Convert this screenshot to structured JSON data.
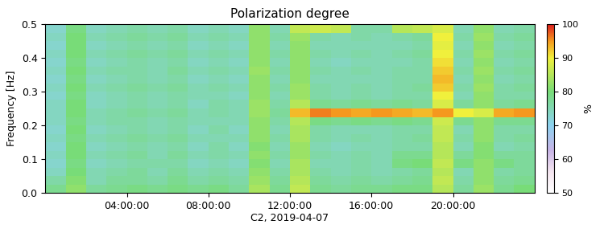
{
  "chart_data": {
    "type": "heatmap",
    "title": "Polarization degree",
    "x_label": "C2, 2019-04-07",
    "y_label": "Frequency [Hz]",
    "xlim": [
      0,
      24
    ],
    "xticks": [
      {
        "value": 4,
        "label": "04:00:00"
      },
      {
        "value": 8,
        "label": "08:00:00"
      },
      {
        "value": 12,
        "label": "12:00:00"
      },
      {
        "value": 16,
        "label": "16:00:00"
      },
      {
        "value": 20,
        "label": "20:00:00"
      }
    ],
    "ylim": [
      0,
      0.5
    ],
    "yticks": [
      {
        "value": 0,
        "label": "0.0"
      },
      {
        "value": 0.1,
        "label": "0.1"
      },
      {
        "value": 0.2,
        "label": "0.2"
      },
      {
        "value": 0.3,
        "label": "0.3"
      },
      {
        "value": 0.4,
        "label": "0.4"
      },
      {
        "value": 0.5,
        "label": "0.5"
      }
    ],
    "x_edges": [
      0,
      1,
      2,
      3,
      4,
      5,
      6,
      7,
      8,
      9,
      10,
      11,
      12,
      13,
      14,
      15,
      16,
      17,
      18,
      19,
      20,
      21,
      22,
      23,
      24
    ],
    "y_edges": [
      0,
      0.025,
      0.05,
      0.075,
      0.1,
      0.125,
      0.15,
      0.175,
      0.2,
      0.225,
      0.25,
      0.275,
      0.3,
      0.325,
      0.35,
      0.375,
      0.4,
      0.425,
      0.45,
      0.475,
      0.5
    ],
    "cells": [
      [
        78,
        82,
        77,
        78,
        79,
        78,
        79,
        78,
        79,
        77,
        84,
        78,
        86,
        78,
        77,
        78,
        78,
        79,
        79,
        85,
        77,
        83,
        78,
        80
      ],
      [
        76,
        81,
        75,
        77,
        77,
        76,
        78,
        76,
        77,
        76,
        83,
        77,
        85,
        77,
        76,
        77,
        76,
        77,
        78,
        86,
        76,
        82,
        77,
        78
      ],
      [
        74,
        80,
        75,
        76,
        77,
        75,
        77,
        75,
        76,
        75,
        82,
        76,
        84,
        76,
        75,
        76,
        75,
        76,
        77,
        85,
        75,
        82,
        76,
        77
      ],
      [
        73,
        79,
        74,
        75,
        76,
        76,
        76,
        74,
        75,
        74,
        81,
        75,
        84,
        75,
        75,
        76,
        75,
        79,
        80,
        86,
        79,
        82,
        79,
        77
      ],
      [
        74,
        80,
        75,
        76,
        77,
        75,
        77,
        75,
        76,
        75,
        82,
        76,
        83,
        76,
        75,
        76,
        75,
        78,
        78,
        85,
        77,
        81,
        77,
        77
      ],
      [
        73,
        80,
        74,
        75,
        76,
        75,
        76,
        74,
        76,
        74,
        81,
        75,
        83,
        75,
        74,
        75,
        75,
        76,
        76,
        85,
        75,
        81,
        75,
        76
      ],
      [
        74,
        79,
        75,
        76,
        77,
        76,
        77,
        75,
        75,
        75,
        82,
        76,
        84,
        76,
        75,
        76,
        75,
        76,
        77,
        86,
        76,
        82,
        76,
        77
      ],
      [
        73,
        80,
        74,
        75,
        76,
        75,
        76,
        74,
        76,
        74,
        82,
        75,
        84,
        76,
        75,
        75,
        75,
        76,
        76,
        86,
        75,
        82,
        76,
        76
      ],
      [
        74,
        79,
        75,
        76,
        76,
        75,
        76,
        75,
        75,
        75,
        82,
        76,
        85,
        79,
        78,
        79,
        78,
        79,
        78,
        87,
        78,
        82,
        78,
        78
      ],
      [
        74,
        80,
        75,
        76,
        77,
        76,
        77,
        75,
        76,
        75,
        83,
        77,
        93,
        96,
        95,
        94,
        95,
        94,
        93,
        95,
        90,
        88,
        94,
        95
      ],
      [
        74,
        80,
        74,
        75,
        76,
        75,
        76,
        74,
        76,
        75,
        83,
        76,
        85,
        78,
        77,
        78,
        77,
        78,
        77,
        88,
        77,
        82,
        77,
        78
      ],
      [
        73,
        79,
        74,
        75,
        76,
        75,
        76,
        75,
        75,
        74,
        82,
        75,
        83,
        76,
        75,
        76,
        75,
        76,
        76,
        90,
        75,
        82,
        76,
        76
      ],
      [
        74,
        80,
        75,
        76,
        77,
        76,
        77,
        75,
        76,
        75,
        82,
        76,
        83,
        76,
        75,
        76,
        75,
        76,
        77,
        92,
        76,
        83,
        76,
        77
      ],
      [
        73,
        79,
        74,
        75,
        76,
        75,
        76,
        74,
        75,
        74,
        82,
        75,
        82,
        75,
        75,
        75,
        75,
        76,
        76,
        93,
        75,
        82,
        75,
        76
      ],
      [
        74,
        80,
        75,
        76,
        76,
        75,
        77,
        75,
        76,
        75,
        83,
        76,
        82,
        76,
        75,
        76,
        75,
        76,
        76,
        92,
        76,
        83,
        76,
        77
      ],
      [
        73,
        79,
        74,
        75,
        76,
        75,
        76,
        74,
        75,
        74,
        82,
        75,
        82,
        75,
        74,
        75,
        75,
        75,
        76,
        91,
        75,
        82,
        75,
        76
      ],
      [
        74,
        80,
        75,
        76,
        77,
        76,
        77,
        75,
        76,
        75,
        82,
        76,
        82,
        76,
        75,
        76,
        75,
        76,
        77,
        90,
        76,
        83,
        76,
        77
      ],
      [
        73,
        80,
        74,
        75,
        76,
        75,
        76,
        74,
        75,
        74,
        82,
        75,
        82,
        75,
        75,
        75,
        75,
        75,
        76,
        89,
        75,
        82,
        75,
        76
      ],
      [
        74,
        80,
        75,
        76,
        77,
        76,
        77,
        75,
        76,
        75,
        82,
        76,
        83,
        76,
        75,
        76,
        75,
        76,
        77,
        90,
        76,
        83,
        76,
        77
      ],
      [
        73,
        79,
        74,
        75,
        76,
        75,
        76,
        74,
        75,
        74,
        82,
        75,
        86,
        87,
        86,
        76,
        76,
        85,
        86,
        88,
        75,
        82,
        75,
        76
      ]
    ],
    "colorbar": {
      "label": "%",
      "range": [
        50,
        100
      ],
      "ticks": [
        50,
        60,
        70,
        80,
        90,
        100
      ]
    }
  }
}
